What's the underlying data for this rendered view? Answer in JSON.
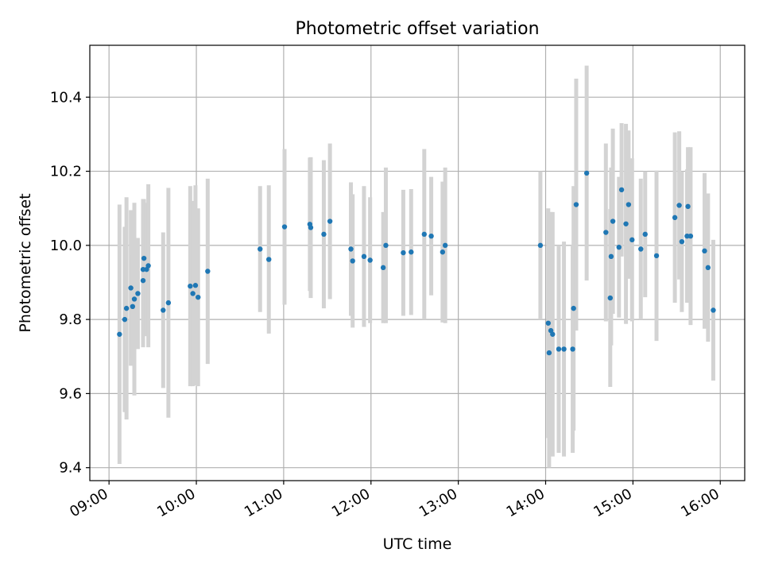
{
  "chart_data": {
    "type": "scatter",
    "title": "Photometric offset variation",
    "xlabel": "UTC time",
    "ylabel": "Photometric offset",
    "x_unit": "hours UTC",
    "xlim": [
      8.78,
      16.28
    ],
    "ylim": [
      9.365,
      10.54
    ],
    "grid": true,
    "x_ticks": [
      9,
      10,
      11,
      12,
      13,
      14,
      15,
      16
    ],
    "x_tick_labels": [
      "09:00",
      "10:00",
      "11:00",
      "12:00",
      "13:00",
      "14:00",
      "15:00",
      "16:00"
    ],
    "y_ticks": [
      9.4,
      9.6,
      9.8,
      10.0,
      10.2,
      10.4
    ],
    "y_tick_labels": [
      "9.4",
      "9.6",
      "9.8",
      "10.0",
      "10.2",
      "10.4"
    ],
    "colors": {
      "marker": "#1f77b4",
      "errorbar": "#d3d3d3",
      "grid": "#b0b0b0"
    },
    "series": [
      {
        "name": "Photometric offset",
        "x": [
          9.12,
          9.18,
          9.2,
          9.25,
          9.27,
          9.29,
          9.33,
          9.39,
          9.39,
          9.4,
          9.43,
          9.45,
          9.62,
          9.68,
          9.93,
          9.96,
          9.99,
          10.02,
          10.13,
          10.73,
          10.83,
          11.01,
          11.3,
          11.31,
          11.46,
          11.53,
          11.77,
          11.79,
          11.92,
          11.99,
          12.14,
          12.17,
          12.37,
          12.46,
          12.61,
          12.69,
          12.82,
          12.85,
          13.94,
          14.03,
          14.04,
          14.06,
          14.08,
          14.15,
          14.21,
          14.31,
          14.32,
          14.35,
          14.47,
          14.69,
          14.74,
          14.75,
          14.77,
          14.84,
          14.87,
          14.92,
          14.95,
          14.99,
          15.09,
          15.14,
          15.27,
          15.48,
          15.53,
          15.56,
          15.62,
          15.63,
          15.66,
          15.82,
          15.86,
          15.92
        ],
        "y": [
          9.76,
          9.8,
          9.83,
          9.885,
          9.835,
          9.855,
          9.87,
          9.905,
          9.935,
          9.965,
          9.935,
          9.945,
          9.825,
          9.845,
          9.89,
          9.87,
          9.892,
          9.86,
          9.93,
          9.99,
          9.962,
          10.05,
          10.057,
          10.048,
          10.03,
          10.065,
          9.99,
          9.958,
          9.97,
          9.96,
          9.94,
          10.0,
          9.98,
          9.982,
          10.03,
          10.025,
          9.982,
          10.0,
          10.0,
          9.79,
          9.71,
          9.77,
          9.76,
          9.72,
          9.72,
          9.72,
          9.83,
          10.11,
          10.195,
          10.035,
          9.858,
          9.97,
          10.065,
          9.995,
          10.15,
          10.058,
          10.11,
          10.015,
          9.99,
          10.03,
          9.972,
          10.075,
          10.108,
          10.01,
          10.025,
          10.105,
          10.025,
          9.985,
          9.94,
          9.825
        ],
        "yerr": [
          0.35,
          0.25,
          0.3,
          0.21,
          0.14,
          0.26,
          0.15,
          0.18,
          0.19,
          0.16,
          0.18,
          0.22,
          0.21,
          0.31,
          0.27,
          0.25,
          0.27,
          0.24,
          0.25,
          0.17,
          0.2,
          0.21,
          0.18,
          0.19,
          0.2,
          0.21,
          0.18,
          0.18,
          0.19,
          0.17,
          0.15,
          0.21,
          0.17,
          0.17,
          0.23,
          0.16,
          0.19,
          0.21,
          0.2,
          0.31,
          0.31,
          0.32,
          0.33,
          0.28,
          0.29,
          0.28,
          0.33,
          0.34,
          0.29,
          0.24,
          0.24,
          0.24,
          0.25,
          0.19,
          0.18,
          0.27,
          0.2,
          0.22,
          0.19,
          0.17,
          0.23,
          0.23,
          0.2,
          0.19,
          0.18,
          0.16,
          0.24,
          0.21,
          0.2,
          0.19
        ]
      }
    ]
  }
}
